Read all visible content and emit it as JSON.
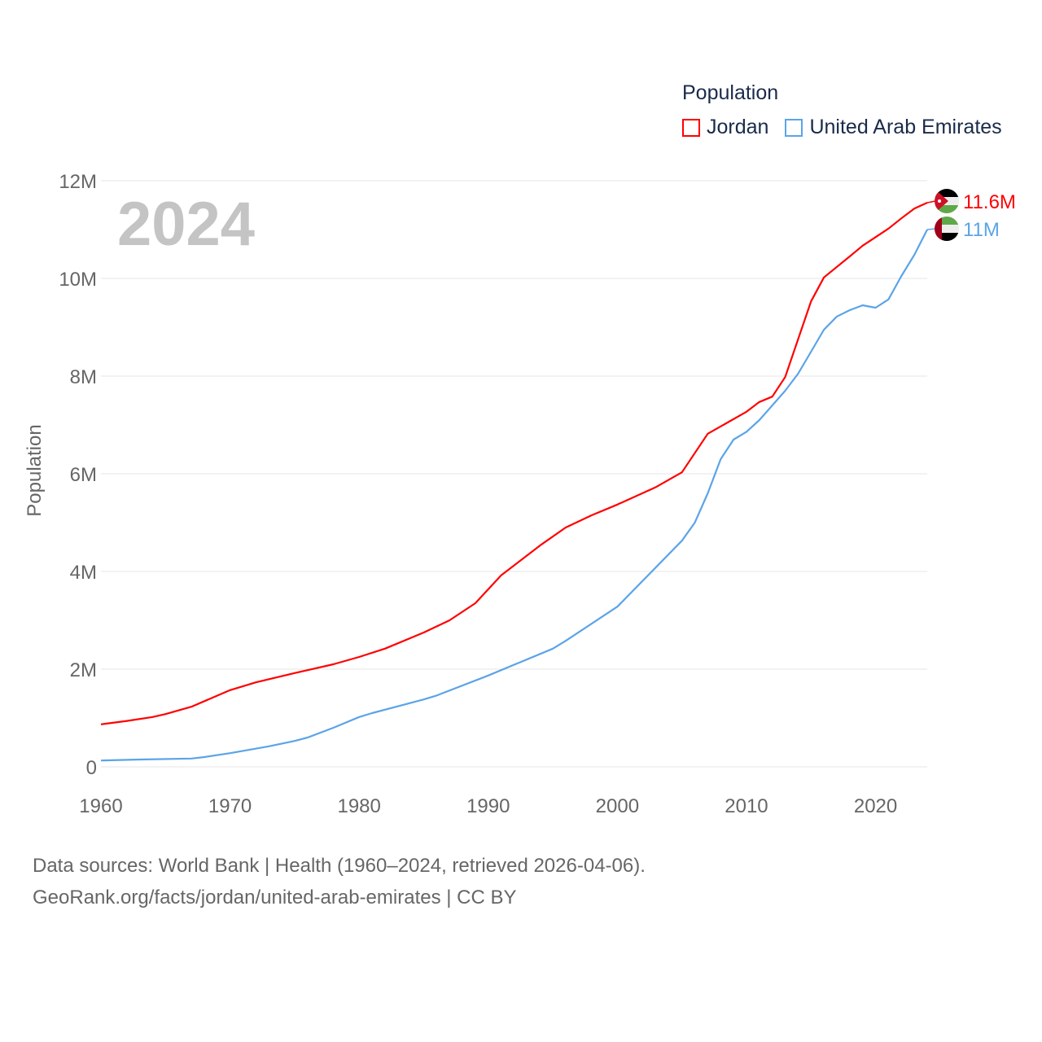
{
  "chart_data": {
    "type": "line",
    "ylabel": "Population",
    "ylim": [
      0,
      12000000
    ],
    "xlim": [
      1960,
      2024
    ],
    "yticks": [
      {
        "v": 0,
        "label": "0"
      },
      {
        "v": 2000000,
        "label": "2M"
      },
      {
        "v": 4000000,
        "label": "4M"
      },
      {
        "v": 6000000,
        "label": "6M"
      },
      {
        "v": 8000000,
        "label": "8M"
      },
      {
        "v": 10000000,
        "label": "10M"
      },
      {
        "v": 12000000,
        "label": "12M"
      }
    ],
    "xticks": [
      1960,
      1970,
      1980,
      1990,
      2000,
      2010,
      2020
    ],
    "grid": true,
    "legend_title": "Population",
    "legend_position": "top-right",
    "current_year": "2024",
    "series": [
      {
        "name": "Jordan",
        "color": "#ff0000",
        "end_label": "11.6M",
        "points": [
          [
            1960,
            0.87
          ],
          [
            1962,
            0.94
          ],
          [
            1964,
            1.02
          ],
          [
            1965,
            1.08
          ],
          [
            1967,
            1.23
          ],
          [
            1970,
            1.57
          ],
          [
            1972,
            1.73
          ],
          [
            1975,
            1.92
          ],
          [
            1978,
            2.1
          ],
          [
            1980,
            2.25
          ],
          [
            1982,
            2.42
          ],
          [
            1985,
            2.75
          ],
          [
            1987,
            3.0
          ],
          [
            1989,
            3.35
          ],
          [
            1991,
            3.92
          ],
          [
            1994,
            4.53
          ],
          [
            1996,
            4.9
          ],
          [
            1998,
            5.15
          ],
          [
            2000,
            5.37
          ],
          [
            2003,
            5.73
          ],
          [
            2005,
            6.03
          ],
          [
            2007,
            6.82
          ],
          [
            2010,
            7.27
          ],
          [
            2011,
            7.47
          ],
          [
            2012,
            7.58
          ],
          [
            2013,
            7.98
          ],
          [
            2015,
            9.53
          ],
          [
            2016,
            10.02
          ],
          [
            2018,
            10.45
          ],
          [
            2019,
            10.67
          ],
          [
            2021,
            11.02
          ],
          [
            2022,
            11.23
          ],
          [
            2023,
            11.43
          ],
          [
            2024,
            11.55
          ]
        ]
      },
      {
        "name": "United Arab Emirates",
        "color": "#5ba4e8",
        "end_label": "11M",
        "points": [
          [
            1960,
            0.13
          ],
          [
            1963,
            0.15
          ],
          [
            1967,
            0.17
          ],
          [
            1968,
            0.2
          ],
          [
            1970,
            0.28
          ],
          [
            1973,
            0.42
          ],
          [
            1975,
            0.53
          ],
          [
            1976,
            0.6
          ],
          [
            1978,
            0.8
          ],
          [
            1980,
            1.02
          ],
          [
            1981,
            1.1
          ],
          [
            1985,
            1.38
          ],
          [
            1986,
            1.46
          ],
          [
            1990,
            1.87
          ],
          [
            1995,
            2.42
          ],
          [
            1996,
            2.58
          ],
          [
            2000,
            3.28
          ],
          [
            2005,
            4.63
          ],
          [
            2006,
            5.0
          ],
          [
            2007,
            5.6
          ],
          [
            2008,
            6.3
          ],
          [
            2009,
            6.7
          ],
          [
            2010,
            6.86
          ],
          [
            2011,
            7.1
          ],
          [
            2012,
            7.4
          ],
          [
            2013,
            7.7
          ],
          [
            2014,
            8.05
          ],
          [
            2015,
            8.5
          ],
          [
            2016,
            8.95
          ],
          [
            2017,
            9.22
          ],
          [
            2018,
            9.35
          ],
          [
            2019,
            9.45
          ],
          [
            2020,
            9.4
          ],
          [
            2021,
            9.57
          ],
          [
            2022,
            10.05
          ],
          [
            2023,
            10.48
          ],
          [
            2024,
            11.0
          ]
        ]
      }
    ]
  },
  "legend": {
    "title": "Population",
    "items": [
      "Jordan",
      "United Arab Emirates"
    ]
  },
  "footer": {
    "line1": "Data sources: World Bank | Health (1960–2024, retrieved 2026-04-06).",
    "line2": "GeoRank.org/facts/jordan/united-arab-emirates | CC BY"
  }
}
